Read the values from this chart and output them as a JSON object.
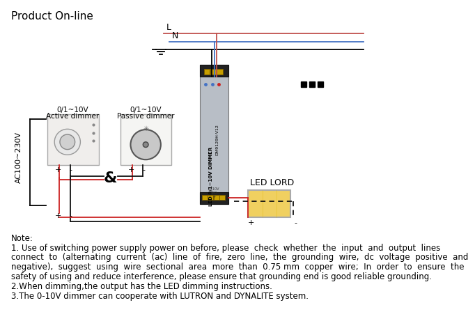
{
  "title": "Product On-line",
  "bg_color": "#ffffff",
  "note_lines": [
    "Note:",
    "1. Use of switching power supply power on before, please  check  whether  the  input  and  output  lines",
    "connect  to  (alternating  current  (ac)  line  of  fire,  zero  line,  the  grounding  wire,  dc  voltage  positive  and",
    "negative),  suggest  using  wire  sectional  area  more  than  0.75 mm  copper  wire;  In  order  to  ensure  the",
    "safety of using and reduce interference, please ensure that grounding end is good reliable grounding.",
    "2.When dimming,the output has the LED dimming instructions.",
    "3.The 0-10V dimmer can cooperate with LUTRON and DYNALITE system."
  ],
  "label_L": "L",
  "label_N": "N",
  "label_ac": "AC100~230V",
  "label_led": "LED LORD",
  "color_red": "#c0504d",
  "color_blue": "#4472c4",
  "color_black": "#000000",
  "color_driver_body": "#b8bec6",
  "color_driver_end": "#222222",
  "color_led_fill": "#f0d060",
  "color_led_border": "#c8a000",
  "color_wire_red": "#cc2222",
  "color_wire_black": "#111111"
}
